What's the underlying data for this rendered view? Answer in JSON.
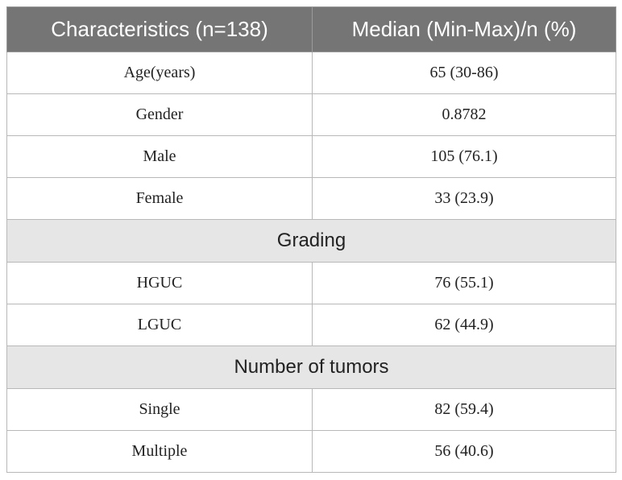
{
  "table": {
    "header": {
      "col1": "Characteristics (n=138)",
      "col2": "Median (Min-Max)/n (%)"
    },
    "rows": [
      {
        "label": "Age(years)",
        "value": "65 (30-86)"
      },
      {
        "label": "Gender",
        "value": "0.8782"
      },
      {
        "label": "Male",
        "value": "105 (76.1)"
      },
      {
        "label": "Female",
        "value": "33 (23.9)"
      },
      {
        "section": "Grading"
      },
      {
        "label": "HGUC",
        "value": "76 (55.1)"
      },
      {
        "label": "LGUC",
        "value": "62 (44.9)"
      },
      {
        "section": "Number of tumors"
      },
      {
        "label": "Single",
        "value": "82 (59.4)"
      },
      {
        "label": "Multiple",
        "value": "56 (40.6)"
      }
    ]
  }
}
